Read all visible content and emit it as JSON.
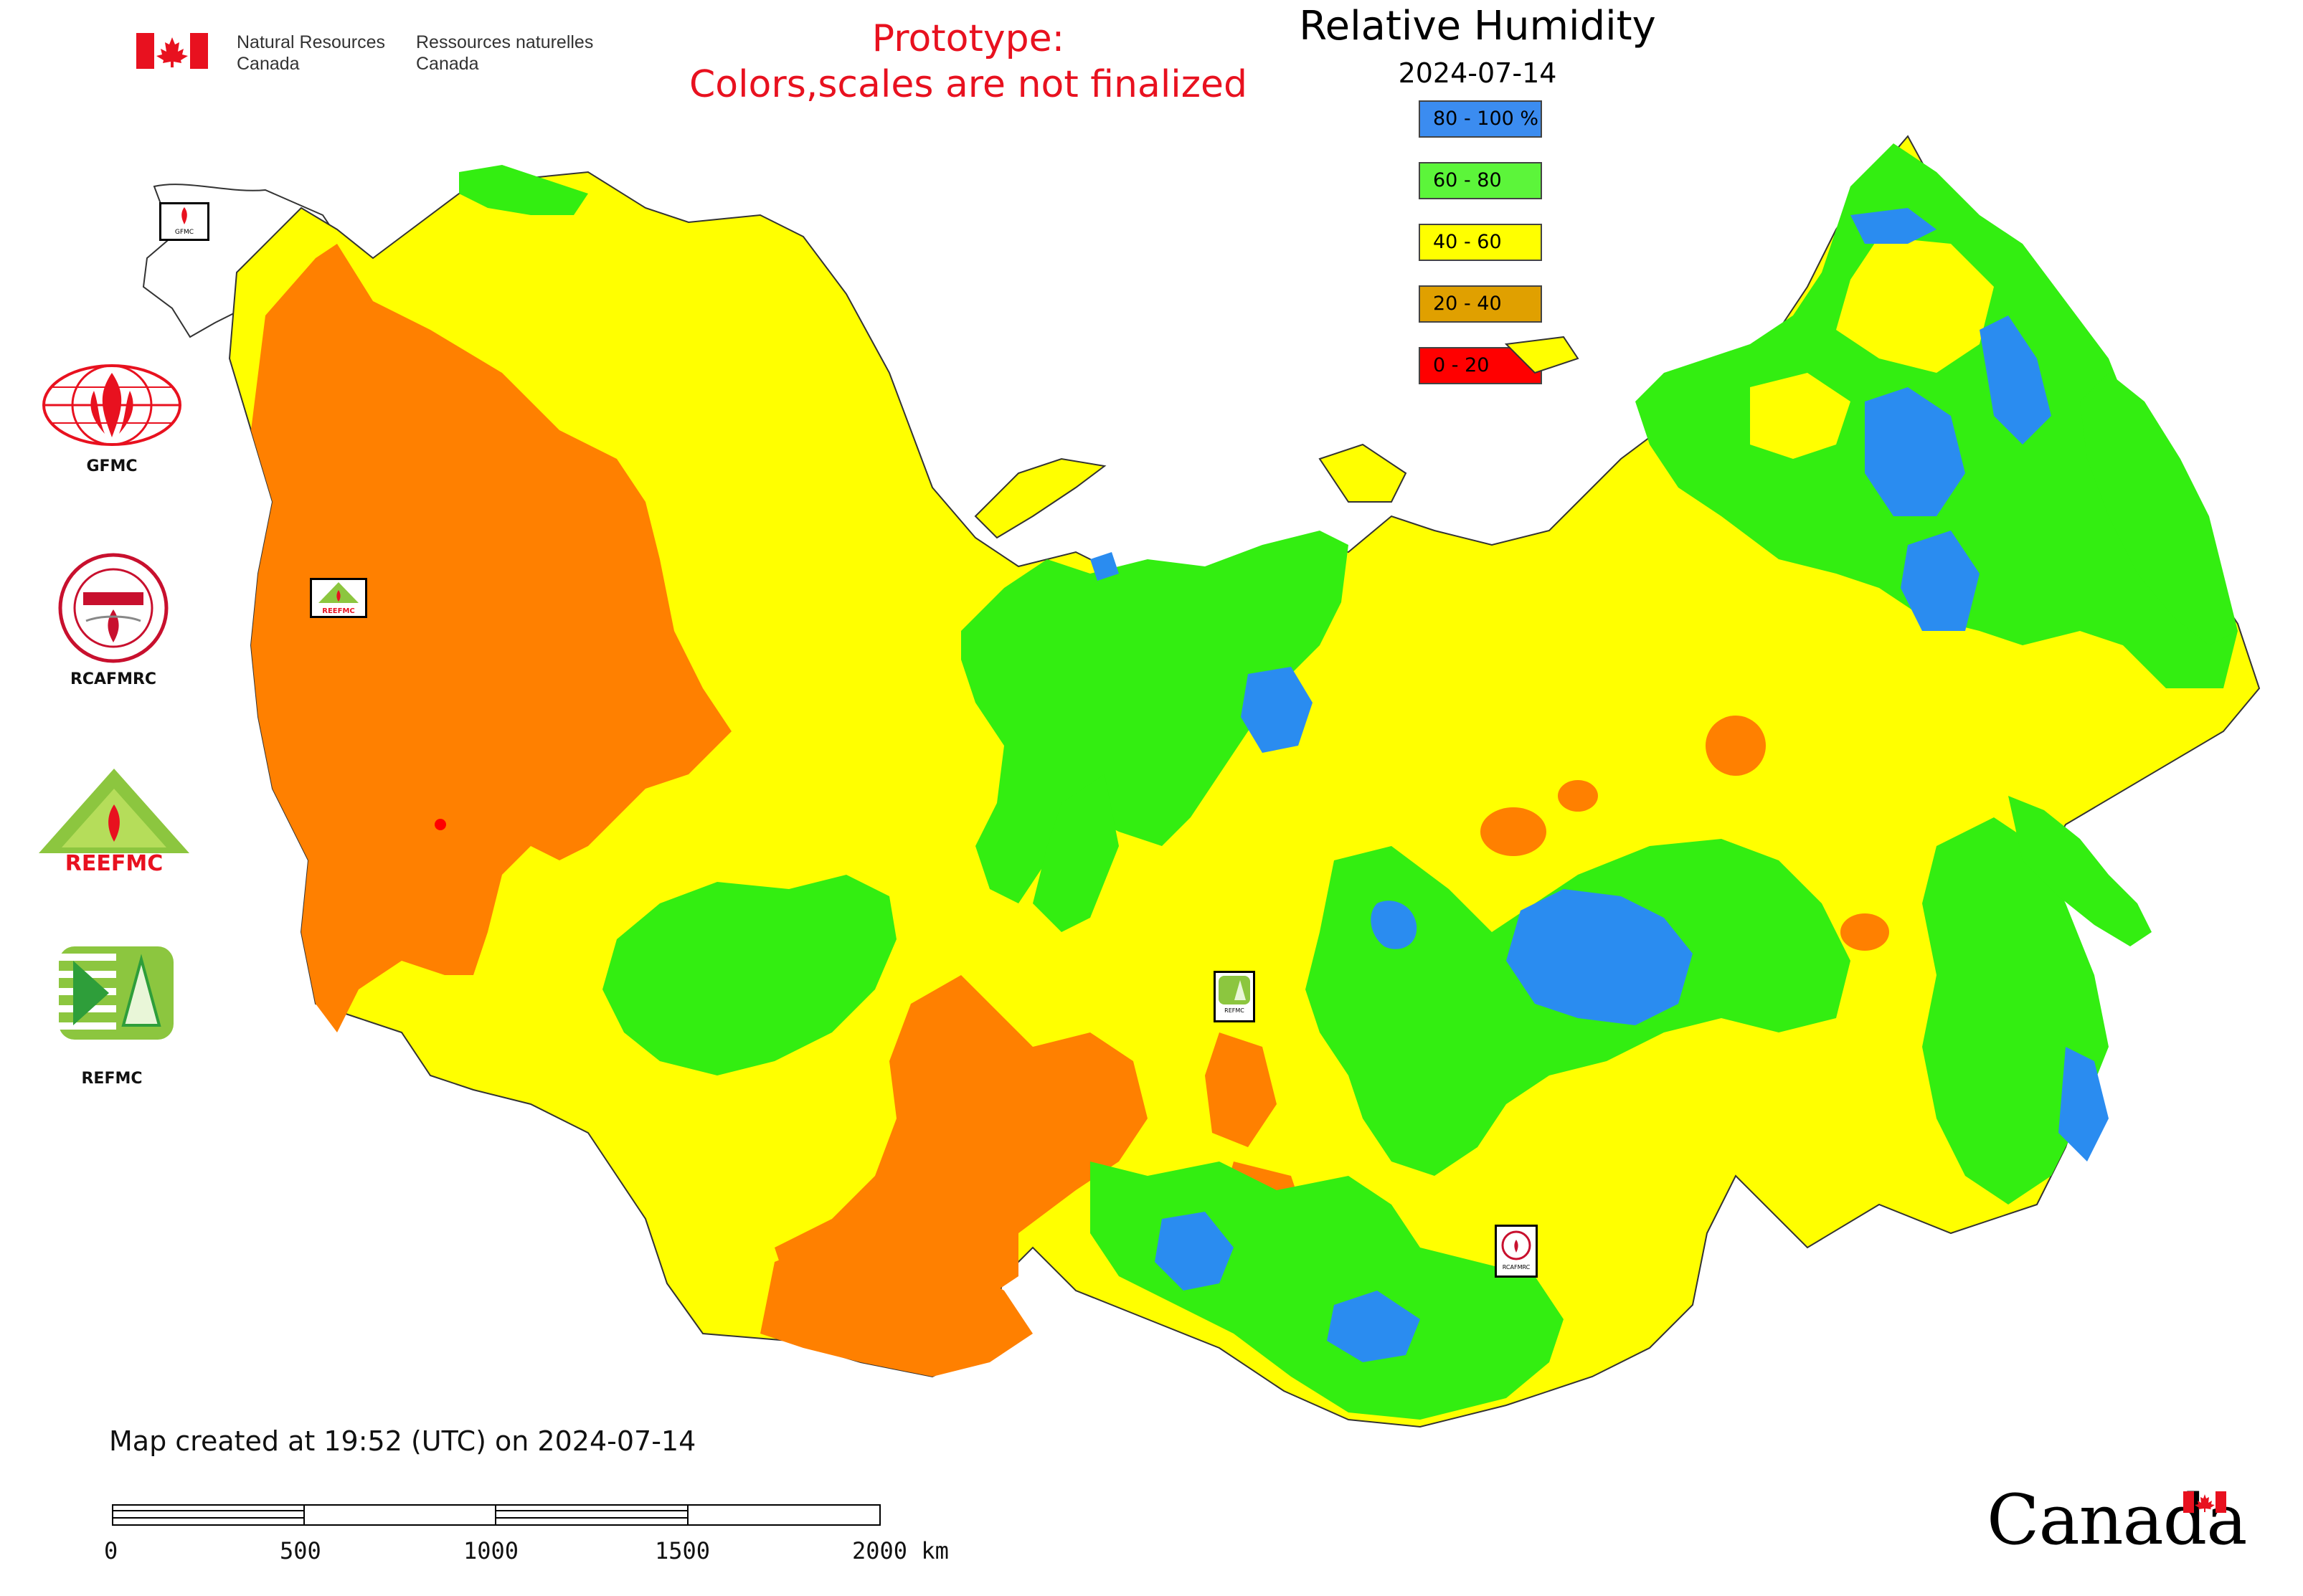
{
  "header": {
    "nrcan_en_line1": "Natural Resources",
    "nrcan_en_line2": "Canada",
    "nrcan_fr_line1": "Ressources naturelles",
    "nrcan_fr_line2": "Canada",
    "prototype_line1": "Prototype:",
    "prototype_line2": "Colors,scales are not finalized"
  },
  "map": {
    "title": "Relative Humidity",
    "date": "2024-07-14",
    "legend": [
      {
        "label": "80 - 100 %",
        "color": "#3b8cf0"
      },
      {
        "label": "60 - 80",
        "color": "#5cf53a"
      },
      {
        "label": "40 - 60",
        "color": "#ffff00"
      },
      {
        "label": "20 - 40",
        "color": "#e0a000"
      },
      {
        "label": "0 - 20",
        "color": "#ff0000"
      }
    ],
    "region_colors": {
      "dry_20_40": "#ff8000",
      "moderate_40_60": "#ffff00",
      "humid_60_80": "#33ee11",
      "wet_80_100": "#2a8cf0",
      "very_dry_0_20": "#ff0000"
    }
  },
  "logos": [
    {
      "label": "GFMC",
      "icon": "gfmc-logo-icon"
    },
    {
      "label": "RCAFMRC",
      "icon": "rcafmrc-logo-icon"
    },
    {
      "label": "",
      "icon": "reefmc-logo-icon",
      "inner_text": "REEFMC"
    },
    {
      "label": "REFMC",
      "icon": "refmc-logo-icon"
    }
  ],
  "map_markers": [
    {
      "label": "GFMC"
    },
    {
      "label": "REEFMC"
    },
    {
      "label": "REFMC"
    },
    {
      "label": "RCAFMRC"
    }
  ],
  "footer": {
    "created_text": "Map created at 19:52 (UTC) on 2024-07-14",
    "scale_labels": [
      "0",
      "500",
      "1000",
      "1500",
      "2000 km"
    ],
    "wordmark": "Canada"
  }
}
